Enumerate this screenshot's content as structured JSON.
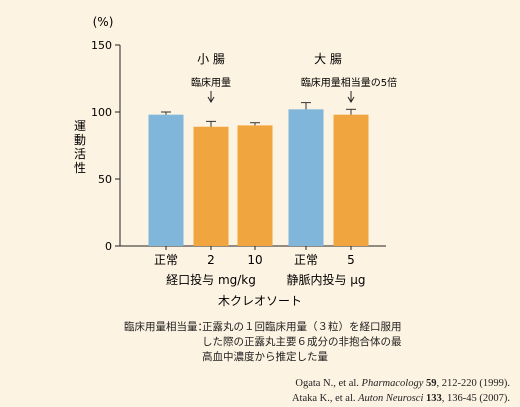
{
  "chart_data": {
    "type": "bar",
    "unit_label": "(%)",
    "ylabel": "運動活性",
    "ylim": [
      0,
      150
    ],
    "yticks": [
      0,
      50,
      100,
      150
    ],
    "bars": [
      {
        "label": "正常",
        "value": 98,
        "error": 2,
        "color": "#7fb6d9"
      },
      {
        "label": "2",
        "value": 89,
        "error": 4,
        "color": "#f1a53f"
      },
      {
        "label": "10",
        "value": 90,
        "error": 2,
        "color": "#f1a53f"
      },
      {
        "label": "正常",
        "value": 102,
        "error": 5,
        "color": "#7fb6d9"
      },
      {
        "label": "5",
        "value": 98,
        "error": 4,
        "color": "#f1a53f"
      }
    ],
    "groups": [
      {
        "title": "小 腸",
        "annotation": "臨床用量"
      },
      {
        "title": "大 腸",
        "annotation": "臨床用量相当量の5倍"
      }
    ],
    "subgroup_labels": [
      "経口投与 mg/kg",
      "静脈内投与 μg"
    ],
    "xlabel": "木クレオソート"
  },
  "note": {
    "label": "臨床用量相当量：",
    "text": "正露丸の１回臨床用量（３粒）を経口服用した際の正露丸主要６成分の非抱合体の最高血中濃度から推定した量"
  },
  "references": [
    {
      "authors": "Ogata N., et al.",
      "journal": "Pharmacology",
      "volume": "59",
      "rest": ", 212-220 (1999)."
    },
    {
      "authors": "Ataka K., et al.",
      "journal": "Auton Neurosci",
      "volume": "133",
      "rest": ", 136-45 (2007)."
    }
  ]
}
